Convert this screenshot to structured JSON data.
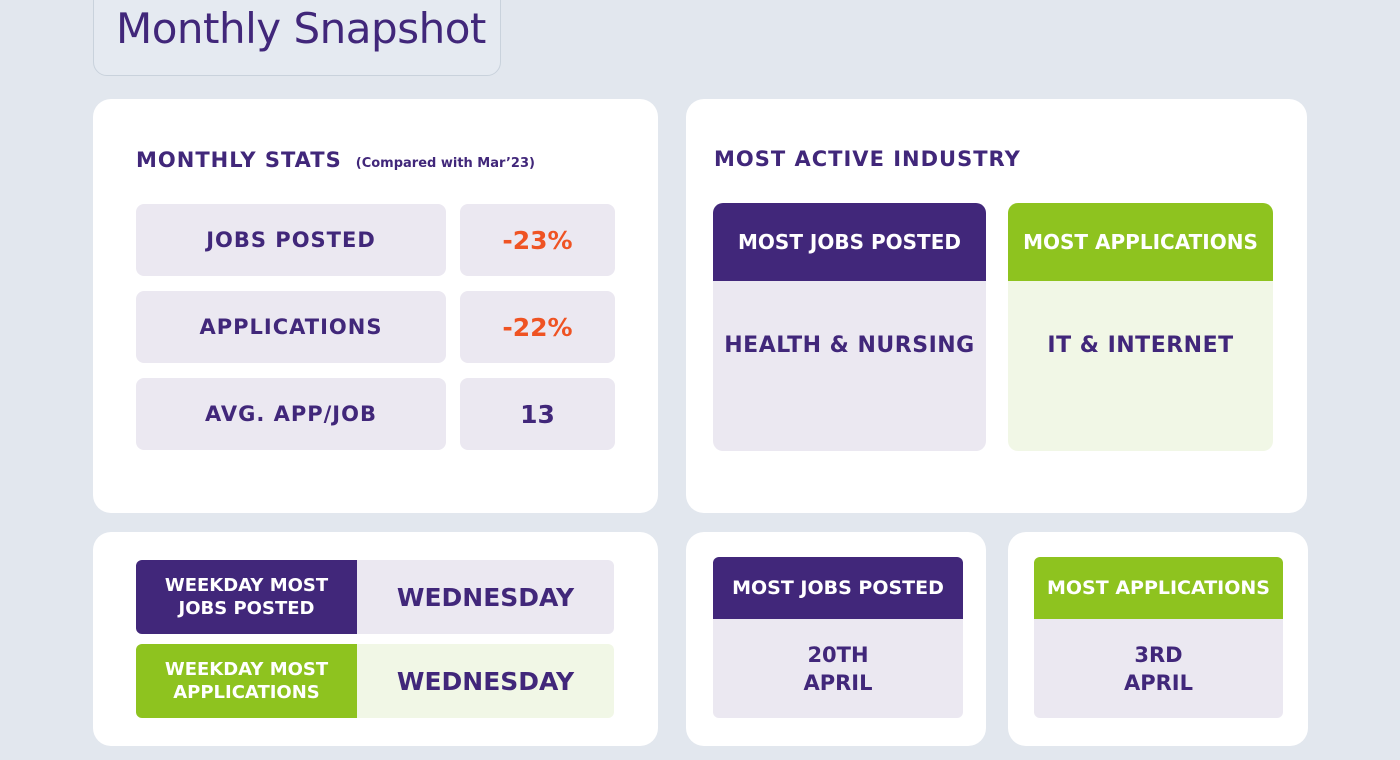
{
  "page": {
    "title": "Monthly Snapshot"
  },
  "monthly_stats": {
    "heading": "MONTHLY STATS",
    "note": "(Compared with Mar’23)",
    "rows": [
      {
        "label": "JOBS POSTED",
        "value": "-23%"
      },
      {
        "label": "APPLICATIONS",
        "value": "-22%"
      },
      {
        "label": "AVG. APP/JOB",
        "value": "13"
      }
    ]
  },
  "most_active_industry": {
    "heading": "MOST ACTIVE INDUSTRY",
    "jobs": {
      "label": "MOST JOBS POSTED",
      "value": "HEALTH & NURSING"
    },
    "applications": {
      "label": "MOST APPLICATIONS",
      "value": "IT & INTERNET"
    }
  },
  "weekdays": {
    "jobs": {
      "label_line1": "WEEKDAY MOST",
      "label_line2": "JOBS POSTED",
      "value": "WEDNESDAY"
    },
    "applications": {
      "label_line1": "WEEKDAY MOST",
      "label_line2": "APPLICATIONS",
      "value": "WEDNESDAY"
    }
  },
  "dates": {
    "jobs": {
      "label": "MOST JOBS POSTED",
      "value_line1": "20TH",
      "value_line2": "APRIL"
    },
    "applications": {
      "label": "MOST APPLICATIONS",
      "value_line1": "3RD",
      "value_line2": "APRIL"
    }
  },
  "colors": {
    "purple": "#41277a",
    "green": "#8ec31f",
    "negative": "#ef5323",
    "lavender": "#ebe8f1",
    "light_green": "#f1f7e6",
    "background": "#e2e7ee"
  }
}
